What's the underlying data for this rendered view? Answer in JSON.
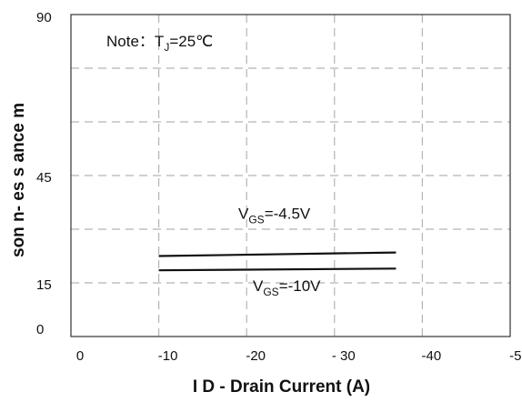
{
  "chart_data": {
    "type": "line",
    "xlabel": "I D - Drain Current (A)",
    "ylabel": "son n- es s ance m",
    "x_ticks": [
      "0",
      "-10",
      "-20",
      "- 30",
      "-40",
      "-50"
    ],
    "y_ticks": [
      "90",
      "45",
      "15",
      "0"
    ],
    "xlim": [
      0,
      -50
    ],
    "ylim": [
      0,
      90
    ],
    "grid": true,
    "note": {
      "prefix": "Note：",
      "var": "T",
      "sub": "J",
      "suffix": "=25℃"
    },
    "series": [
      {
        "label_var": "V",
        "label_sub": "GS",
        "label_value": "=-4.5V",
        "x": [
          -10,
          -37
        ],
        "y": [
          22.5,
          23.5
        ]
      },
      {
        "label_var": "V",
        "label_sub": "GS",
        "label_value": "=-10V",
        "x": [
          -10,
          -37
        ],
        "y": [
          18.5,
          19.0
        ]
      }
    ]
  },
  "colors": {
    "grid": "#b4b4b4",
    "line": "#111111",
    "axis": "#333333"
  }
}
